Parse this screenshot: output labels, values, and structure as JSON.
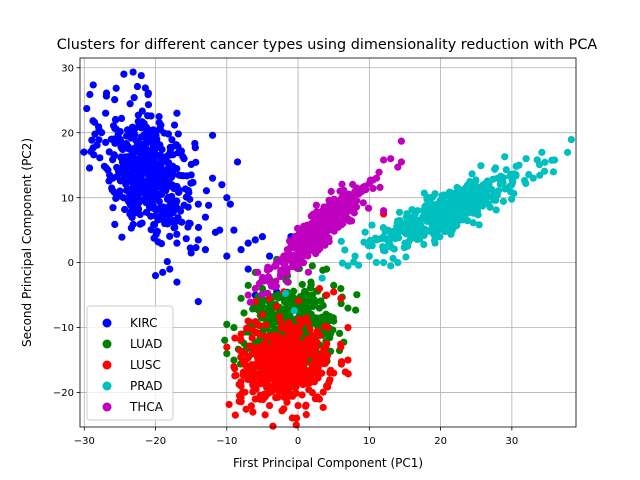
{
  "chart_data": {
    "type": "scatter",
    "title": "Clusters for different cancer types using dimensionality reduction with PCA",
    "xlabel": "First Principal Component (PC1)",
    "ylabel": "Second Principal Component (PC2)",
    "xlim": [
      -30.6,
      39.0
    ],
    "ylim": [
      -25.3,
      31.5
    ],
    "xticks": [
      -30,
      -20,
      -10,
      0,
      10,
      20,
      30
    ],
    "yticks": [
      -20,
      -10,
      0,
      10,
      20,
      30
    ],
    "grid": true,
    "legend_position": "lower-left",
    "series": [
      {
        "name": "KIRC",
        "color": "#0000ff",
        "center": [
          -21,
          14
        ],
        "spread": [
          3.2,
          5.0
        ],
        "correlation": -0.35,
        "count": 520,
        "points": [
          [
            -22,
            28.8
          ],
          [
            -27,
            23
          ],
          [
            -23,
            25.4
          ],
          [
            -27,
            18.5
          ],
          [
            -12,
            19.6
          ],
          [
            -8.5,
            15.5
          ],
          [
            -17,
            23
          ],
          [
            -16,
            16
          ],
          [
            -15,
            13.5
          ],
          [
            -14,
            9
          ],
          [
            -12,
            13
          ],
          [
            -10,
            10
          ],
          [
            -9.5,
            9
          ],
          [
            -9,
            5
          ],
          [
            -11,
            5
          ],
          [
            -13,
            7
          ],
          [
            -14,
            3.5
          ],
          [
            -13,
            2
          ],
          [
            -15,
            1.5
          ],
          [
            -17,
            3
          ],
          [
            -18,
            -1
          ],
          [
            -19,
            -1.5
          ],
          [
            -17,
            -3
          ],
          [
            -20,
            -2
          ],
          [
            -14,
            -6
          ],
          [
            -8,
            2
          ],
          [
            -7,
            3
          ],
          [
            -6,
            3.5
          ],
          [
            -5,
            4
          ],
          [
            -10,
            1
          ],
          [
            -4,
            1
          ],
          [
            -3,
            0
          ],
          [
            -5,
            -2.5
          ],
          [
            -7,
            -1
          ],
          [
            -6,
            -5
          ],
          [
            -4,
            -6
          ],
          [
            -3,
            -4.5
          ],
          [
            -2,
            -2
          ],
          [
            -1,
            4
          ],
          [
            1,
            5
          ],
          [
            -24,
            16
          ],
          [
            -26,
            13
          ],
          [
            -25,
            19
          ],
          [
            -20,
            20
          ],
          [
            -19,
            7
          ],
          [
            -21,
            9
          ],
          [
            -23,
            11
          ],
          [
            -18,
            10
          ]
        ]
      },
      {
        "name": "LUAD",
        "color": "#008000",
        "center": [
          -1,
          -10
        ],
        "spread": [
          3.2,
          3.2
        ],
        "correlation": 0.2,
        "count": 400,
        "points": [
          [
            -7,
            -3.5
          ],
          [
            -4,
            -2.5
          ],
          [
            -3,
            0.5
          ],
          [
            -6,
            -1.5
          ],
          [
            -5,
            -4
          ],
          [
            -8,
            -5.5
          ],
          [
            -9,
            -10
          ],
          [
            -10,
            -9.5
          ],
          [
            -10,
            -14
          ],
          [
            -9,
            -15
          ],
          [
            -6,
            -14
          ],
          [
            -8,
            -12
          ],
          [
            2,
            -0.5
          ],
          [
            4,
            -1
          ],
          [
            5,
            -3.5
          ],
          [
            6,
            -4
          ],
          [
            7,
            -7
          ],
          [
            5,
            -9
          ],
          [
            4,
            -11
          ],
          [
            3,
            -14
          ],
          [
            1,
            -15
          ],
          [
            -1,
            -16
          ],
          [
            -3,
            -15
          ],
          [
            -5,
            -13
          ],
          [
            -2,
            -8
          ],
          [
            0,
            -6
          ],
          [
            2,
            -5
          ],
          [
            -4,
            -9
          ],
          [
            1,
            -10
          ],
          [
            3,
            -7
          ]
        ]
      },
      {
        "name": "LUSC",
        "color": "#ff0000",
        "center": [
          -2,
          -16
        ],
        "spread": [
          3.1,
          3.0
        ],
        "correlation": 0.1,
        "count": 500,
        "points": [
          [
            -7,
            -9
          ],
          [
            -6,
            -6
          ],
          [
            -5,
            -8
          ],
          [
            -4,
            -5.5
          ],
          [
            -2,
            -4.5
          ],
          [
            3,
            -4
          ],
          [
            4,
            -5
          ],
          [
            5,
            -4.5
          ],
          [
            6,
            -5.5
          ],
          [
            7,
            -10
          ],
          [
            6,
            -13
          ],
          [
            7,
            -15
          ],
          [
            5,
            -17
          ],
          [
            4,
            -19
          ],
          [
            3,
            -21
          ],
          [
            2,
            -20
          ],
          [
            0,
            -22
          ],
          [
            -2,
            -22.5
          ],
          [
            -4,
            -22
          ],
          [
            -6,
            -21
          ],
          [
            -8,
            -19
          ],
          [
            -9,
            -16
          ],
          [
            -10,
            -13
          ],
          [
            -8,
            -11
          ],
          [
            12,
            7.5
          ],
          [
            -6,
            -16
          ],
          [
            -3,
            -18
          ],
          [
            0,
            -14
          ],
          [
            2,
            -12
          ],
          [
            -1,
            -10
          ]
        ]
      },
      {
        "name": "PRAD",
        "color": "#00bfbf",
        "center": [
          21,
          8
        ],
        "spread": [
          5.5,
          3.2
        ],
        "correlation": 0.85,
        "count": 400,
        "points": [
          [
            36,
            15.8
          ],
          [
            32,
            16
          ],
          [
            31,
            15
          ],
          [
            29,
            16.3
          ],
          [
            33,
            13
          ],
          [
            30,
            12
          ],
          [
            12,
            4
          ],
          [
            11,
            3.5
          ],
          [
            10,
            1
          ],
          [
            12,
            0
          ],
          [
            13,
            -0.5
          ],
          [
            14,
            0
          ],
          [
            7,
            -0.5
          ],
          [
            8,
            1
          ],
          [
            14,
            5
          ],
          [
            16,
            7
          ],
          [
            18,
            8
          ],
          [
            20,
            9
          ],
          [
            22,
            10
          ],
          [
            24,
            11
          ],
          [
            26,
            12
          ],
          [
            28,
            13
          ],
          [
            25,
            9
          ],
          [
            19,
            5
          ],
          [
            17,
            4
          ],
          [
            15,
            3
          ]
        ]
      },
      {
        "name": "THCA",
        "color": "#bf00bf",
        "center": [
          3,
          5
        ],
        "spread": [
          3.2,
          3.5
        ],
        "correlation": 0.9,
        "count": 450,
        "points": [
          [
            14.5,
            18.7
          ],
          [
            13,
            16
          ],
          [
            12,
            15.8
          ],
          [
            14.5,
            15.5
          ],
          [
            14,
            14.7
          ],
          [
            11,
            13
          ],
          [
            9,
            11
          ],
          [
            10,
            12.2
          ],
          [
            8,
            11
          ],
          [
            6,
            9
          ],
          [
            5,
            8
          ],
          [
            3,
            7
          ],
          [
            1,
            5
          ],
          [
            -1,
            3
          ],
          [
            -2,
            1
          ],
          [
            -3,
            0
          ],
          [
            -4,
            -1
          ],
          [
            -5,
            -2.5
          ],
          [
            -6,
            -4
          ],
          [
            -7,
            -5
          ],
          [
            -4,
            -3
          ],
          [
            0,
            2
          ],
          [
            2,
            4
          ],
          [
            4,
            6
          ],
          [
            7,
            10
          ],
          [
            12,
            8
          ]
        ]
      }
    ]
  }
}
